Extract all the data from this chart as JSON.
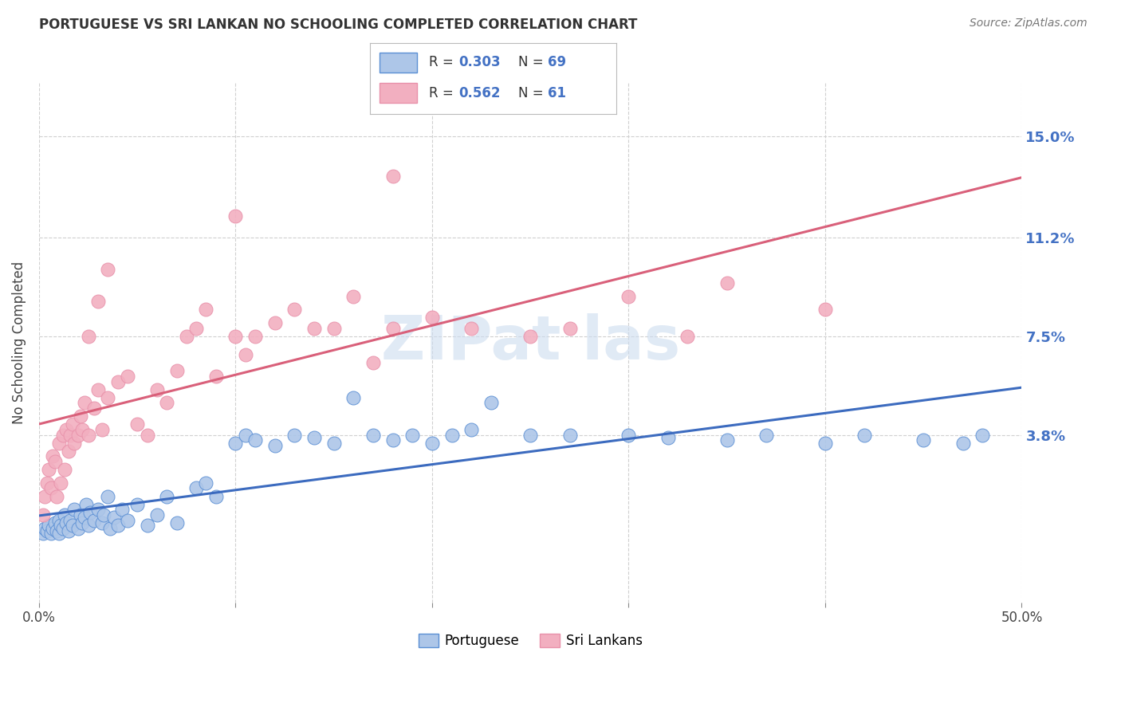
{
  "title": "PORTUGUESE VS SRI LANKAN NO SCHOOLING COMPLETED CORRELATION CHART",
  "source": "Source: ZipAtlas.com",
  "ylabel": "No Schooling Completed",
  "ytick_labels": [
    "15.0%",
    "11.2%",
    "7.5%",
    "3.8%"
  ],
  "ytick_values": [
    15.0,
    11.2,
    7.5,
    3.8
  ],
  "xlim": [
    0.0,
    50.0
  ],
  "ylim": [
    -2.5,
    17.0
  ],
  "background_color": "#ffffff",
  "portuguese_color": "#adc6e8",
  "srilanka_color": "#f2afc0",
  "portuguese_edge_color": "#5b8fd4",
  "srilanka_edge_color": "#e891aa",
  "portuguese_line_color": "#3c6bbf",
  "srilanka_line_color": "#d9607a",
  "blue_text_color": "#4472c4",
  "portuguese_scatter": [
    [
      0.2,
      0.1
    ],
    [
      0.3,
      0.3
    ],
    [
      0.4,
      0.2
    ],
    [
      0.5,
      0.4
    ],
    [
      0.6,
      0.1
    ],
    [
      0.7,
      0.3
    ],
    [
      0.8,
      0.5
    ],
    [
      0.9,
      0.2
    ],
    [
      1.0,
      0.6
    ],
    [
      1.0,
      0.1
    ],
    [
      1.1,
      0.4
    ],
    [
      1.2,
      0.3
    ],
    [
      1.3,
      0.8
    ],
    [
      1.4,
      0.5
    ],
    [
      1.5,
      0.2
    ],
    [
      1.6,
      0.6
    ],
    [
      1.7,
      0.4
    ],
    [
      1.8,
      1.0
    ],
    [
      2.0,
      0.3
    ],
    [
      2.1,
      0.8
    ],
    [
      2.2,
      0.5
    ],
    [
      2.3,
      0.7
    ],
    [
      2.4,
      1.2
    ],
    [
      2.5,
      0.4
    ],
    [
      2.6,
      0.9
    ],
    [
      2.8,
      0.6
    ],
    [
      3.0,
      1.0
    ],
    [
      3.2,
      0.5
    ],
    [
      3.3,
      0.8
    ],
    [
      3.5,
      1.5
    ],
    [
      3.6,
      0.3
    ],
    [
      3.8,
      0.7
    ],
    [
      4.0,
      0.4
    ],
    [
      4.2,
      1.0
    ],
    [
      4.5,
      0.6
    ],
    [
      5.0,
      1.2
    ],
    [
      5.5,
      0.4
    ],
    [
      6.0,
      0.8
    ],
    [
      6.5,
      1.5
    ],
    [
      7.0,
      0.5
    ],
    [
      8.0,
      1.8
    ],
    [
      8.5,
      2.0
    ],
    [
      9.0,
      1.5
    ],
    [
      10.0,
      3.5
    ],
    [
      10.5,
      3.8
    ],
    [
      11.0,
      3.6
    ],
    [
      12.0,
      3.4
    ],
    [
      13.0,
      3.8
    ],
    [
      14.0,
      3.7
    ],
    [
      15.0,
      3.5
    ],
    [
      16.0,
      5.2
    ],
    [
      17.0,
      3.8
    ],
    [
      18.0,
      3.6
    ],
    [
      19.0,
      3.8
    ],
    [
      20.0,
      3.5
    ],
    [
      21.0,
      3.8
    ],
    [
      22.0,
      4.0
    ],
    [
      23.0,
      5.0
    ],
    [
      25.0,
      3.8
    ],
    [
      27.0,
      3.8
    ],
    [
      30.0,
      3.8
    ],
    [
      32.0,
      3.7
    ],
    [
      35.0,
      3.6
    ],
    [
      37.0,
      3.8
    ],
    [
      40.0,
      3.5
    ],
    [
      42.0,
      3.8
    ],
    [
      45.0,
      3.6
    ],
    [
      47.0,
      3.5
    ],
    [
      48.0,
      3.8
    ]
  ],
  "srilanka_scatter": [
    [
      0.2,
      0.8
    ],
    [
      0.3,
      1.5
    ],
    [
      0.4,
      2.0
    ],
    [
      0.5,
      2.5
    ],
    [
      0.6,
      1.8
    ],
    [
      0.7,
      3.0
    ],
    [
      0.8,
      2.8
    ],
    [
      0.9,
      1.5
    ],
    [
      1.0,
      3.5
    ],
    [
      1.1,
      2.0
    ],
    [
      1.2,
      3.8
    ],
    [
      1.3,
      2.5
    ],
    [
      1.4,
      4.0
    ],
    [
      1.5,
      3.2
    ],
    [
      1.6,
      3.8
    ],
    [
      1.7,
      4.2
    ],
    [
      1.8,
      3.5
    ],
    [
      2.0,
      3.8
    ],
    [
      2.1,
      4.5
    ],
    [
      2.2,
      4.0
    ],
    [
      2.3,
      5.0
    ],
    [
      2.5,
      3.8
    ],
    [
      2.8,
      4.8
    ],
    [
      3.0,
      5.5
    ],
    [
      3.2,
      4.0
    ],
    [
      3.5,
      5.2
    ],
    [
      4.0,
      5.8
    ],
    [
      4.5,
      6.0
    ],
    [
      5.0,
      4.2
    ],
    [
      5.5,
      3.8
    ],
    [
      6.0,
      5.5
    ],
    [
      6.5,
      5.0
    ],
    [
      7.0,
      6.2
    ],
    [
      7.5,
      7.5
    ],
    [
      8.0,
      7.8
    ],
    [
      8.5,
      8.5
    ],
    [
      9.0,
      6.0
    ],
    [
      10.0,
      7.5
    ],
    [
      10.5,
      6.8
    ],
    [
      11.0,
      7.5
    ],
    [
      12.0,
      8.0
    ],
    [
      13.0,
      8.5
    ],
    [
      14.0,
      7.8
    ],
    [
      15.0,
      7.8
    ],
    [
      16.0,
      9.0
    ],
    [
      17.0,
      6.5
    ],
    [
      18.0,
      7.8
    ],
    [
      20.0,
      8.2
    ],
    [
      22.0,
      7.8
    ],
    [
      25.0,
      7.5
    ],
    [
      27.0,
      7.8
    ],
    [
      30.0,
      9.0
    ],
    [
      33.0,
      7.5
    ],
    [
      35.0,
      9.5
    ],
    [
      10.0,
      12.0
    ],
    [
      18.0,
      13.5
    ],
    [
      40.0,
      8.5
    ],
    [
      2.5,
      7.5
    ],
    [
      3.0,
      8.8
    ],
    [
      3.5,
      10.0
    ]
  ]
}
